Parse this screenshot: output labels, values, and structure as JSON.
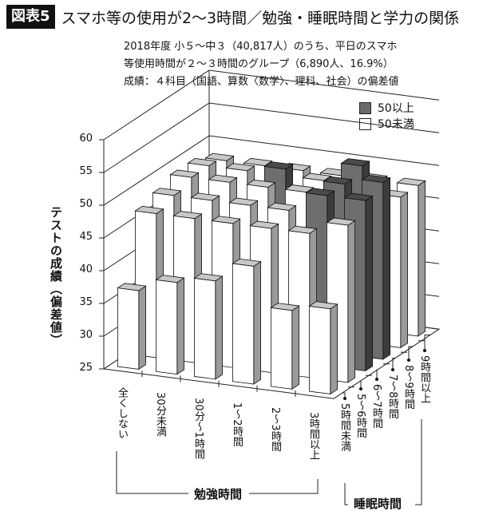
{
  "header": {
    "figure_label": "図表5",
    "title": "スマホ等の使用が2〜3時間／勉強・睡眠時間と学力の関係"
  },
  "subtitle": {
    "line1": "2018年度 小５〜中３（40,817人）のうち、平日のスマホ",
    "line2": "等使用時間が２〜３時間のグループ（6,890人、16.9%）",
    "line3": "成績：４科目（国語、算数〈数学〉、理科、社会）の偏差値"
  },
  "legend": {
    "items": [
      {
        "label": "50以上",
        "color": "#6b6b6b"
      },
      {
        "label": "50未満",
        "color": "#ffffff"
      }
    ]
  },
  "axes": {
    "y_title": "テストの成績（偏差値）",
    "y_ticks": [
      "60",
      "55",
      "50",
      "45",
      "40",
      "35",
      "30",
      "25"
    ],
    "x_group_label": "勉強時間",
    "x_categories": [
      "全くしない",
      "30分未満",
      "30分〜1時間",
      "1〜2時間",
      "2〜3時間",
      "3時間以上"
    ],
    "z_group_label": "睡眠時間",
    "z_categories": [
      "5時間未満",
      "5〜6時間",
      "6〜7時間",
      "7〜8時間",
      "8〜9時間",
      "9時間以上"
    ]
  },
  "chart_data": {
    "type": "bar",
    "subtype": "3d-bar",
    "title": "スマホ等の使用が2〜3時間／勉強・睡眠時間と学力の関係",
    "xlabel": "勉強時間",
    "ylabel": "テストの成績（偏差値）",
    "zlabel": "睡眠時間",
    "ylim": [
      25,
      60
    ],
    "categories": [
      "全くしない",
      "30分未満",
      "30分〜1時間",
      "1〜2時間",
      "2〜3時間",
      "3時間以上"
    ],
    "series": [
      {
        "name": "5時間未満",
        "values": [
          37,
          39,
          40,
          43,
          37,
          38
        ]
      },
      {
        "name": "5〜6時間",
        "values": [
          47,
          47,
          47,
          47,
          47,
          49
        ]
      },
      {
        "name": "6〜7時間",
        "values": [
          48,
          48,
          48,
          48,
          51,
          51
        ]
      },
      {
        "name": "7〜8時間",
        "values": [
          49,
          49,
          49,
          49,
          51,
          52
        ]
      },
      {
        "name": "8〜9時間",
        "values": [
          49,
          49,
          50,
          49,
          52,
          48
        ]
      },
      {
        "name": "9時間以上",
        "values": [
          48,
          48,
          48,
          48,
          48,
          48
        ]
      }
    ],
    "color_rule": {
      "above_or_equal_50": "#6b6b6b",
      "below_50": "#ffffff"
    },
    "legend": [
      "50以上",
      "50未満"
    ],
    "legend_position": "top-right",
    "grid": true
  }
}
